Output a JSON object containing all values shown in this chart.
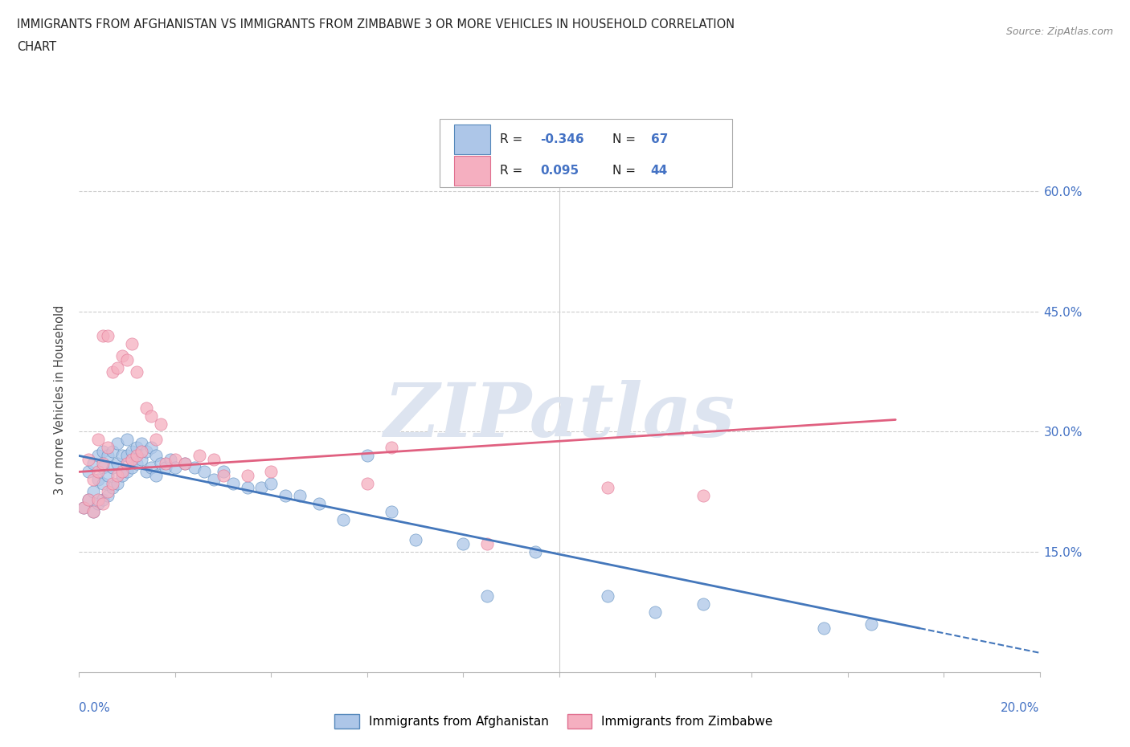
{
  "title_line1": "IMMIGRANTS FROM AFGHANISTAN VS IMMIGRANTS FROM ZIMBABWE 3 OR MORE VEHICLES IN HOUSEHOLD CORRELATION",
  "title_line2": "CHART",
  "source": "Source: ZipAtlas.com",
  "ylabel_ticks": [
    0.0,
    0.15,
    0.3,
    0.45,
    0.6
  ],
  "ylabel_labels": [
    "",
    "15.0%",
    "30.0%",
    "45.0%",
    "60.0%"
  ],
  "xmin": 0.0,
  "xmax": 0.2,
  "ymin": 0.0,
  "ymax": 0.68,
  "afghanistan_color": "#adc6e8",
  "zimbabwe_color": "#f5afc0",
  "afghanistan_edge_color": "#5588bb",
  "zimbabwe_edge_color": "#e07090",
  "afghanistan_line_color": "#4477bb",
  "zimbabwe_line_color": "#e06080",
  "R_afghanistan": -0.346,
  "N_afghanistan": 67,
  "R_zimbabwe": 0.095,
  "N_zimbabwe": 44,
  "legend_label_afghanistan": "Immigrants from Afghanistan",
  "legend_label_zimbabwe": "Immigrants from Zimbabwe",
  "watermark": "ZIPatlas",
  "af_trend_x0": 0.0,
  "af_trend_y0": 0.27,
  "af_trend_x1": 0.175,
  "af_trend_y1": 0.055,
  "zim_trend_x0": 0.0,
  "zim_trend_y0": 0.25,
  "zim_trend_x1": 0.17,
  "zim_trend_y1": 0.315,
  "afghanistan_scatter_x": [
    0.001,
    0.002,
    0.002,
    0.003,
    0.003,
    0.003,
    0.004,
    0.004,
    0.004,
    0.005,
    0.005,
    0.005,
    0.005,
    0.006,
    0.006,
    0.006,
    0.007,
    0.007,
    0.007,
    0.008,
    0.008,
    0.008,
    0.009,
    0.009,
    0.01,
    0.01,
    0.01,
    0.011,
    0.011,
    0.012,
    0.012,
    0.013,
    0.013,
    0.014,
    0.014,
    0.015,
    0.015,
    0.016,
    0.016,
    0.017,
    0.018,
    0.019,
    0.02,
    0.022,
    0.024,
    0.026,
    0.028,
    0.03,
    0.032,
    0.035,
    0.038,
    0.04,
    0.043,
    0.046,
    0.05,
    0.055,
    0.06,
    0.065,
    0.07,
    0.08,
    0.085,
    0.095,
    0.11,
    0.12,
    0.13,
    0.155,
    0.165
  ],
  "afghanistan_scatter_y": [
    0.205,
    0.215,
    0.25,
    0.2,
    0.225,
    0.26,
    0.21,
    0.24,
    0.27,
    0.215,
    0.235,
    0.255,
    0.275,
    0.22,
    0.245,
    0.27,
    0.23,
    0.255,
    0.275,
    0.235,
    0.26,
    0.285,
    0.245,
    0.27,
    0.25,
    0.27,
    0.29,
    0.255,
    0.275,
    0.26,
    0.28,
    0.265,
    0.285,
    0.25,
    0.275,
    0.255,
    0.28,
    0.245,
    0.27,
    0.26,
    0.255,
    0.265,
    0.255,
    0.26,
    0.255,
    0.25,
    0.24,
    0.25,
    0.235,
    0.23,
    0.23,
    0.235,
    0.22,
    0.22,
    0.21,
    0.19,
    0.27,
    0.2,
    0.165,
    0.16,
    0.095,
    0.15,
    0.095,
    0.075,
    0.085,
    0.055,
    0.06
  ],
  "zimbabwe_scatter_x": [
    0.001,
    0.002,
    0.002,
    0.003,
    0.003,
    0.004,
    0.004,
    0.004,
    0.005,
    0.005,
    0.005,
    0.006,
    0.006,
    0.006,
    0.007,
    0.007,
    0.008,
    0.008,
    0.009,
    0.009,
    0.01,
    0.01,
    0.011,
    0.011,
    0.012,
    0.012,
    0.013,
    0.014,
    0.015,
    0.016,
    0.017,
    0.018,
    0.02,
    0.022,
    0.025,
    0.028,
    0.03,
    0.035,
    0.04,
    0.06,
    0.065,
    0.085,
    0.11,
    0.13
  ],
  "zimbabwe_scatter_y": [
    0.205,
    0.215,
    0.265,
    0.2,
    0.24,
    0.215,
    0.25,
    0.29,
    0.21,
    0.26,
    0.42,
    0.225,
    0.28,
    0.42,
    0.235,
    0.375,
    0.245,
    0.38,
    0.25,
    0.395,
    0.26,
    0.39,
    0.265,
    0.41,
    0.27,
    0.375,
    0.275,
    0.33,
    0.32,
    0.29,
    0.31,
    0.26,
    0.265,
    0.26,
    0.27,
    0.265,
    0.245,
    0.245,
    0.25,
    0.235,
    0.28,
    0.16,
    0.23,
    0.22
  ]
}
